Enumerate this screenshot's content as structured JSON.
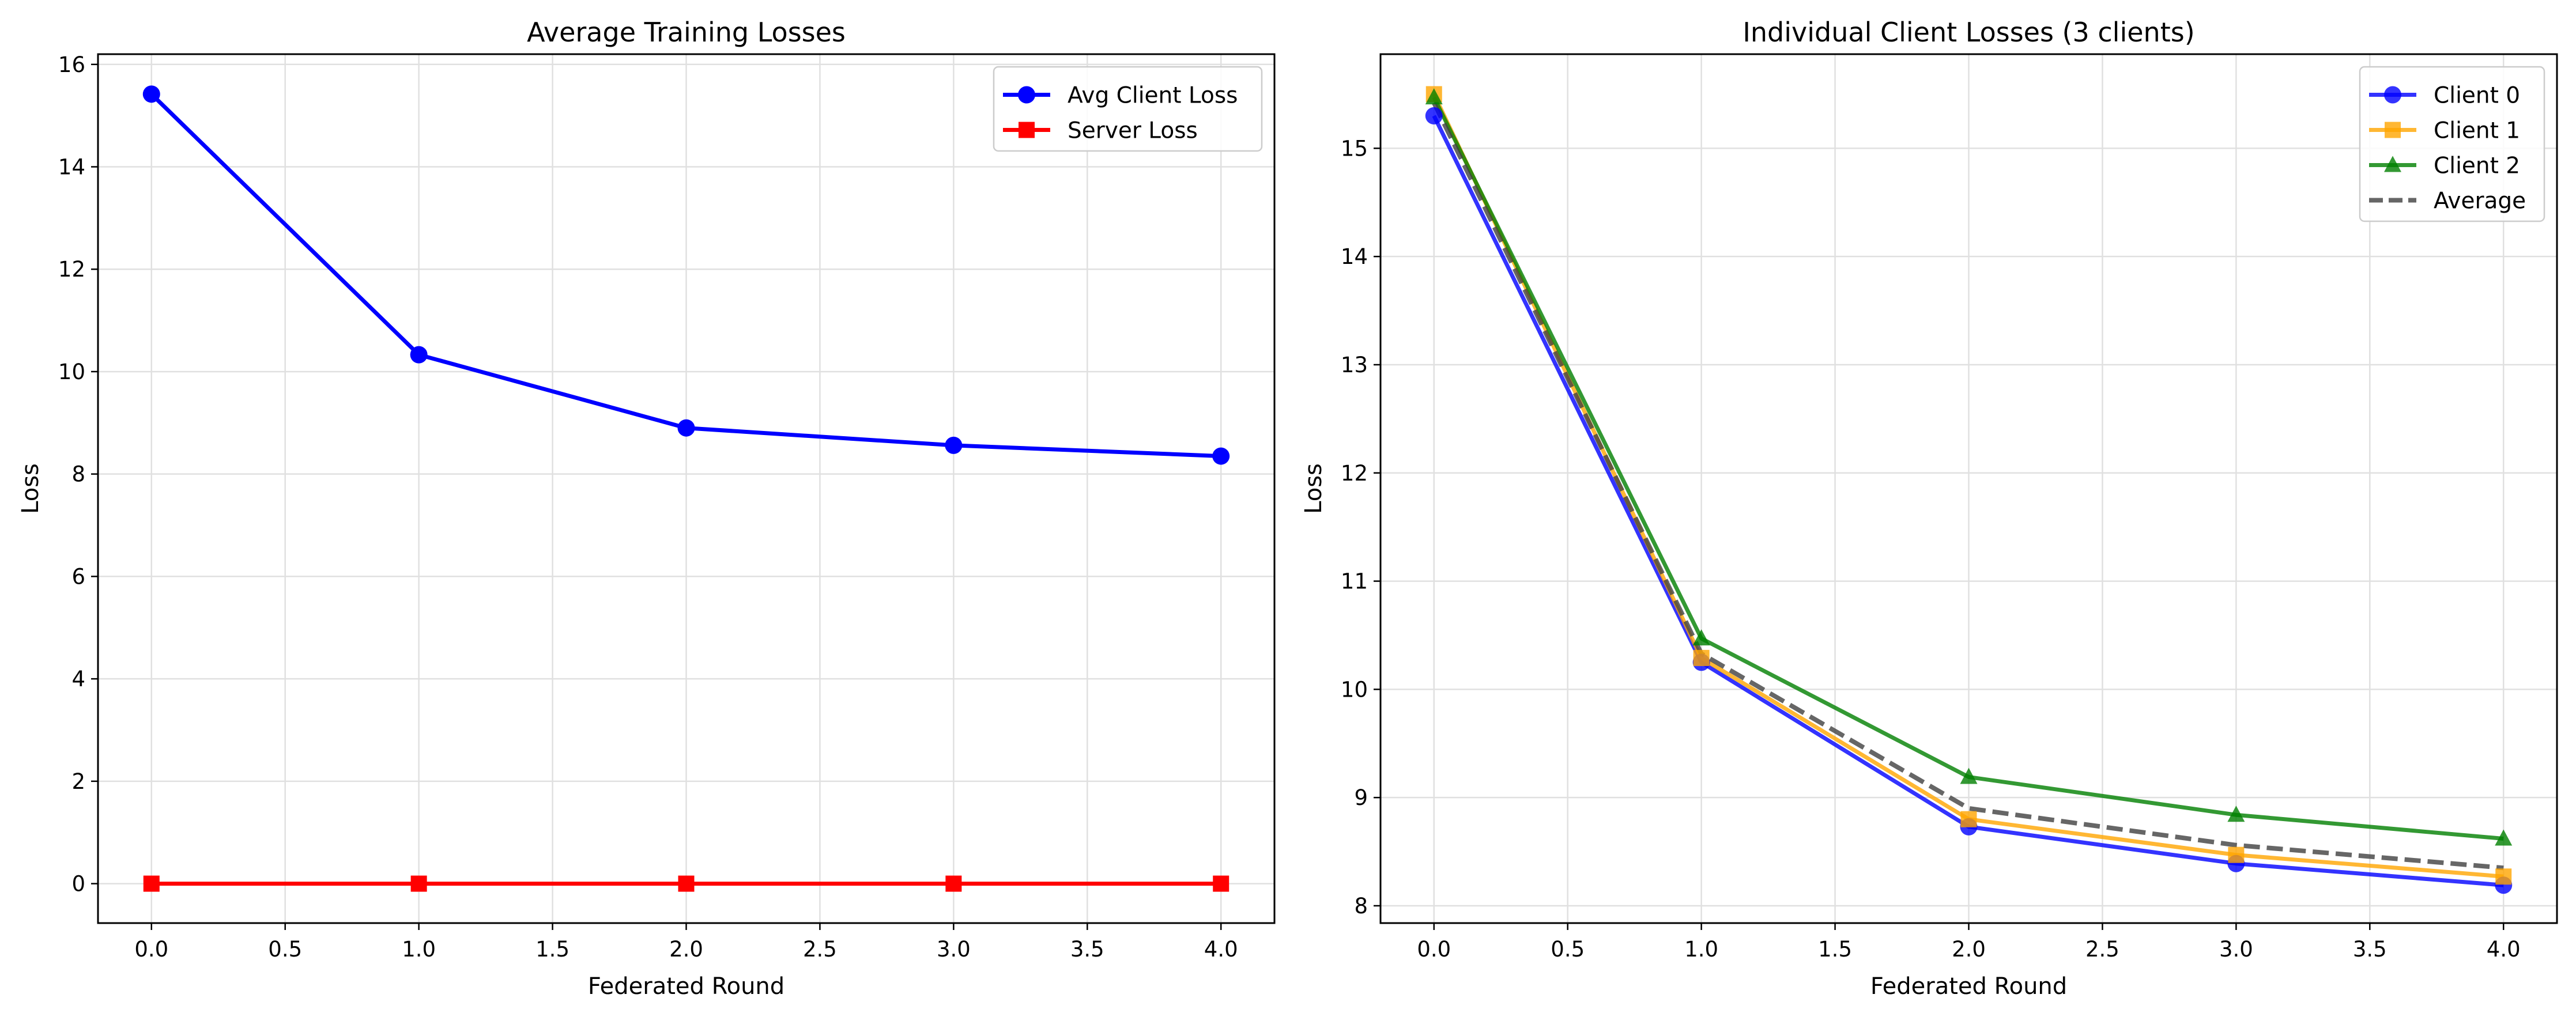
{
  "chart_data": [
    {
      "type": "line",
      "title": "Average Training Losses",
      "xlabel": "Federated Round",
      "ylabel": "Loss",
      "xlim": [
        -0.2,
        4.2
      ],
      "ylim": [
        -0.77,
        16.2
      ],
      "xticks": [
        0.0,
        0.5,
        1.0,
        1.5,
        2.0,
        2.5,
        3.0,
        3.5,
        4.0
      ],
      "xtick_labels": [
        "0.0",
        "0.5",
        "1.0",
        "1.5",
        "2.0",
        "2.5",
        "3.0",
        "3.5",
        "4.0"
      ],
      "yticks": [
        0,
        2,
        4,
        6,
        8,
        10,
        12,
        14,
        16
      ],
      "ytick_labels": [
        "0",
        "2",
        "4",
        "6",
        "8",
        "10",
        "12",
        "14",
        "16"
      ],
      "grid": true,
      "legend_position": "top-right",
      "x": [
        0,
        1,
        2,
        3,
        4
      ],
      "series": [
        {
          "name": "Avg Client Loss",
          "values": [
            15.42,
            10.33,
            8.9,
            8.56,
            8.35
          ],
          "color": "#0000ff",
          "marker": "circle",
          "style": "solid"
        },
        {
          "name": "Server Loss",
          "values": [
            0.0,
            0.0,
            0.0,
            0.0,
            0.0
          ],
          "color": "#ff0000",
          "marker": "square",
          "style": "solid"
        }
      ]
    },
    {
      "type": "line",
      "title": "Individual Client Losses (3 clients)",
      "xlabel": "Federated Round",
      "ylabel": "Loss",
      "xlim": [
        -0.2,
        4.2
      ],
      "ylim": [
        7.84,
        15.87
      ],
      "xticks": [
        0.0,
        0.5,
        1.0,
        1.5,
        2.0,
        2.5,
        3.0,
        3.5,
        4.0
      ],
      "xtick_labels": [
        "0.0",
        "0.5",
        "1.0",
        "1.5",
        "2.0",
        "2.5",
        "3.0",
        "3.5",
        "4.0"
      ],
      "yticks": [
        8,
        9,
        10,
        11,
        12,
        13,
        14,
        15
      ],
      "ytick_labels": [
        "8",
        "9",
        "10",
        "11",
        "12",
        "13",
        "14",
        "15"
      ],
      "grid": true,
      "legend_position": "top-right",
      "x": [
        0,
        1,
        2,
        3,
        4
      ],
      "series": [
        {
          "name": "Client 0",
          "values": [
            15.3,
            10.25,
            8.73,
            8.39,
            8.19
          ],
          "color": "#0000ff",
          "marker": "circle",
          "style": "solid"
        },
        {
          "name": "Client 1",
          "values": [
            15.5,
            10.29,
            8.8,
            8.47,
            8.27
          ],
          "color": "#ffa500",
          "marker": "square",
          "style": "solid"
        },
        {
          "name": "Client 2",
          "values": [
            15.47,
            10.47,
            9.19,
            8.84,
            8.62
          ],
          "color": "#008000",
          "marker": "triangle",
          "style": "solid"
        },
        {
          "name": "Average",
          "values": [
            15.42,
            10.33,
            8.9,
            8.56,
            8.35
          ],
          "color": "#404040",
          "marker": "none",
          "style": "dashed"
        }
      ]
    }
  ]
}
